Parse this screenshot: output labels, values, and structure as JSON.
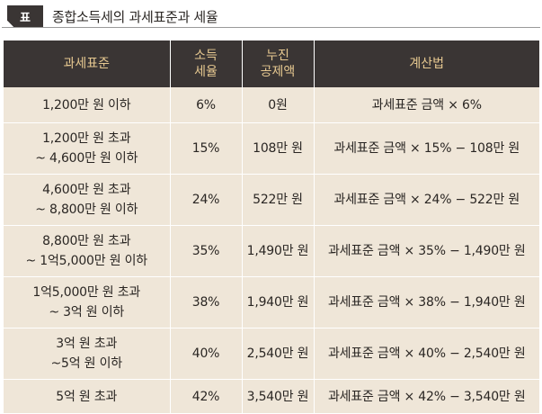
{
  "title": {
    "badge": "표",
    "text": "종합소득세의 과세표준과 세율"
  },
  "table": {
    "headers": {
      "base": "과세표준",
      "rate_l1": "소득",
      "rate_l2": "세율",
      "deduct_l1": "누진",
      "deduct_l2": "공제액",
      "formula": "계산법"
    },
    "rows": [
      {
        "base_l1": "1,200만 원 이하",
        "base_l2": "",
        "rate": "6%",
        "deduction": "0원",
        "formula": "과세표준 금액 × 6%"
      },
      {
        "base_l1": "1,200만 원 초과",
        "base_l2": "~ 4,600만 원 이하",
        "rate": "15%",
        "deduction": "108만 원",
        "formula": "과세표준 금액 × 15% − 108만 원"
      },
      {
        "base_l1": "4,600만 원 초과",
        "base_l2": "~ 8,800만 원 이하",
        "rate": "24%",
        "deduction": "522만 원",
        "formula": "과세표준 금액 × 24% − 522만 원"
      },
      {
        "base_l1": "8,800만 원 초과",
        "base_l2": "~ 1억5,000만 원 이하",
        "rate": "35%",
        "deduction": "1,490만 원",
        "formula": "과세표준 금액 × 35% − 1,490만 원"
      },
      {
        "base_l1": "1억5,000만 원 초과",
        "base_l2": "~ 3억 원 이하",
        "rate": "38%",
        "deduction": "1,940만 원",
        "formula": "과세표준 금액 × 38% − 1,940만 원"
      },
      {
        "base_l1": "3억 원 초과",
        "base_l2": "~5억 원 이하",
        "rate": "40%",
        "deduction": "2,540만 원",
        "formula": "과세표준 금액 × 40% − 2,540만 원"
      },
      {
        "base_l1": "5억 원 초과",
        "base_l2": "",
        "rate": "42%",
        "deduction": "3,540만 원",
        "formula": "과세표준 금액 × 42% − 3,540만 원"
      }
    ]
  },
  "colors": {
    "header_bg": "#3a3534",
    "header_text": "#e6c890",
    "cell_bg": "#efe6d8",
    "body_text": "#2a2623"
  }
}
